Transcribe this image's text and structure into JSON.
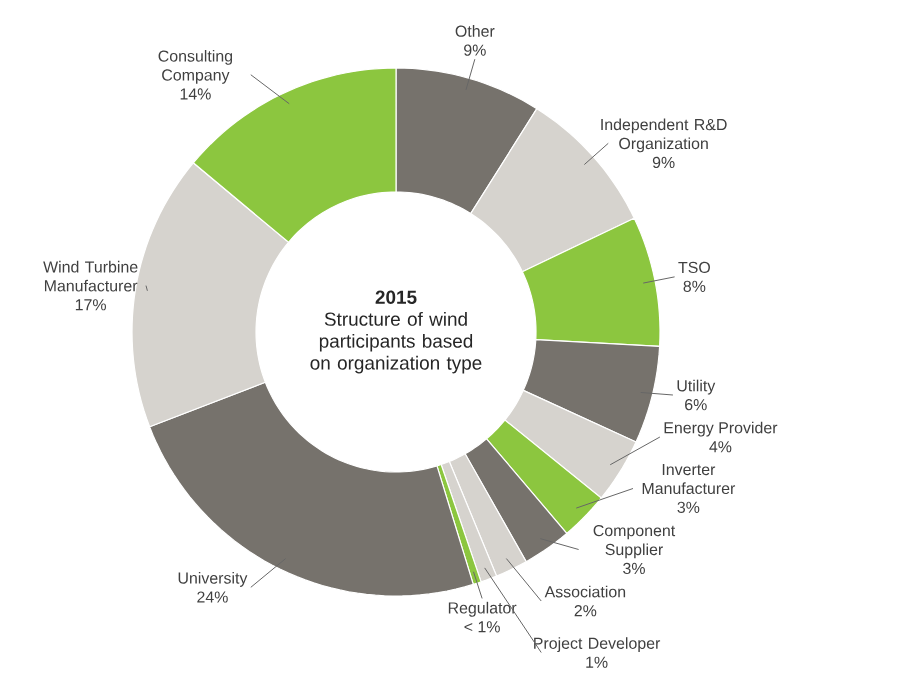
{
  "chart_data": {
    "type": "donut",
    "title": "2015",
    "subtitle": "Structure of wind participants based on organization type",
    "categories": [
      "Other",
      "Independent R&D Organization",
      "TSO",
      "Utility",
      "Energy Provider",
      "Inverter Manufacturer",
      "Component Supplier",
      "Association",
      "Project Developer",
      "Regulator",
      "University",
      "Wind Turbine Manufacturer",
      "Consulting Company"
    ],
    "values": [
      9,
      9,
      8,
      6,
      4,
      3,
      3,
      2,
      1,
      0.5,
      24,
      17,
      14
    ],
    "value_labels": [
      "9%",
      "9%",
      "8%",
      "6%",
      "4%",
      "3%",
      "3%",
      "2%",
      "1%",
      "< 1%",
      "24%",
      "17%",
      "14%"
    ],
    "colors": [
      "#76726c",
      "#d6d3ce",
      "#8cc63f",
      "#76726c",
      "#d6d3ce",
      "#8cc63f",
      "#76726c",
      "#d6d3ce",
      "#d6d3ce",
      "#8cc63f",
      "#76726c",
      "#d6d3ce",
      "#8cc63f"
    ]
  }
}
